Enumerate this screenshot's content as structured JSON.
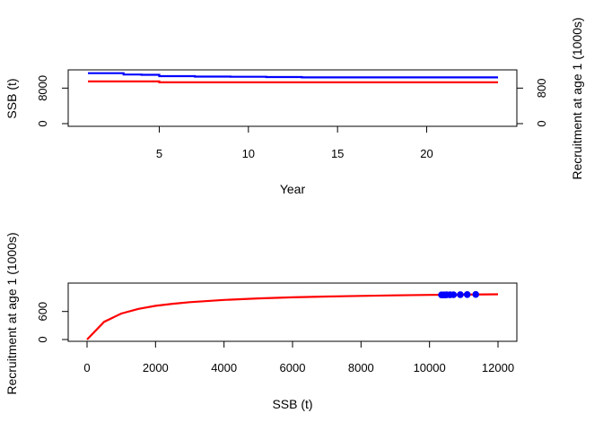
{
  "chart_data": [
    {
      "type": "line",
      "xlabel": "Year",
      "ylabel": "SSB (t)",
      "ylabel_right": "Recruitment at age 1 (1000s)",
      "xlim": [
        1,
        24
      ],
      "xticks": [
        "5",
        "10",
        "15",
        "20"
      ],
      "xtick_values": [
        5,
        10,
        15,
        20
      ],
      "ylim_left": [
        0,
        11500
      ],
      "yticks_left": [
        "0",
        "8000"
      ],
      "ytick_values_left": [
        0,
        8000
      ],
      "ylim_right": [
        0,
        1150
      ],
      "yticks_right": [
        "0",
        "800"
      ],
      "ytick_values_right": [
        0,
        800
      ],
      "series": [
        {
          "axis": "left",
          "color": "#0000ff",
          "x": [
            1,
            2,
            3,
            4,
            5,
            6,
            7,
            8,
            9,
            10,
            11,
            12,
            13,
            14,
            15,
            16,
            17,
            18,
            19,
            20,
            21,
            22,
            23,
            24
          ],
          "values": [
            11350,
            11350,
            11050,
            11000,
            10700,
            10700,
            10600,
            10600,
            10550,
            10550,
            10500,
            10500,
            10420,
            10420,
            10420,
            10420,
            10420,
            10420,
            10420,
            10420,
            10420,
            10420,
            10420,
            10420
          ]
        },
        {
          "axis": "right",
          "color": "#ff0000",
          "x": [
            1,
            2,
            3,
            4,
            5,
            6,
            7,
            8,
            9,
            10,
            11,
            12,
            13,
            14,
            15,
            16,
            17,
            18,
            19,
            20,
            21,
            22,
            23,
            24
          ],
          "values": [
            950,
            950,
            950,
            950,
            930,
            930,
            930,
            930,
            930,
            930,
            930,
            930,
            930,
            930,
            930,
            930,
            930,
            930,
            930,
            930,
            930,
            930,
            930,
            930
          ]
        }
      ]
    },
    {
      "type": "line",
      "xlabel": "SSB (t)",
      "ylabel": "Recruitment at age 1 (1000s)",
      "xlim": [
        0,
        12000
      ],
      "xticks": [
        "0",
        "2000",
        "4000",
        "6000",
        "8000",
        "10000",
        "12000"
      ],
      "xtick_values": [
        0,
        2000,
        4000,
        6000,
        8000,
        10000,
        12000
      ],
      "ylim": [
        0,
        1150
      ],
      "yticks": [
        "0",
        "600"
      ],
      "ytick_values": [
        0,
        600
      ],
      "series": [
        {
          "color": "#ff0000",
          "x": [
            0,
            500,
            1000,
            1500,
            2000,
            2500,
            3000,
            4000,
            5000,
            6000,
            7000,
            8000,
            9000,
            10000,
            11000,
            12000
          ],
          "values": [
            0,
            380,
            555,
            655,
            720,
            765,
            800,
            848,
            880,
            903,
            920,
            934,
            945,
            954,
            961,
            968
          ]
        }
      ],
      "points": {
        "color": "#0000ff",
        "x": [
          10350,
          10400,
          10450,
          10500,
          10600,
          10700,
          10900,
          11100,
          11350
        ],
        "values": [
          954,
          955,
          955,
          956,
          957,
          958,
          960,
          962,
          965
        ]
      }
    }
  ]
}
